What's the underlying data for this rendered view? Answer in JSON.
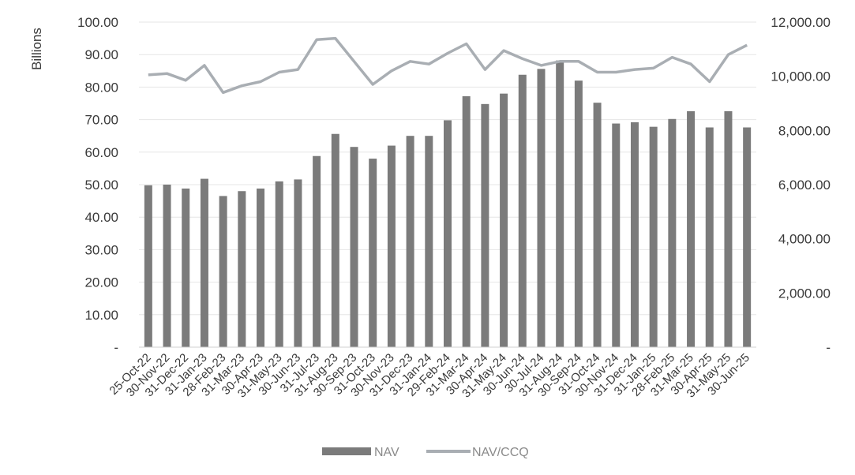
{
  "chart_data": {
    "type": "bar",
    "ylabel": "Billions",
    "y_left_ticks": [
      "-",
      "10.00",
      "20.00",
      "30.00",
      "40.00",
      "50.00",
      "60.00",
      "70.00",
      "80.00",
      "90.00",
      "100.00"
    ],
    "y_right_ticks": [
      "-",
      "2,000.00",
      "4,000.00",
      "6,000.00",
      "8,000.00",
      "10,000.00",
      "12,000.00"
    ],
    "ylim": [
      0,
      100
    ],
    "y2lim": [
      0,
      12000
    ],
    "categories": [
      "25-Oct-22",
      "30-Nov-22",
      "31-Dec-22",
      "31-Jan-23",
      "28-Feb-23",
      "31-Mar-23",
      "30-Apr-23",
      "31-May-23",
      "30-Jun-23",
      "31-Jul-23",
      "31-Aug-23",
      "30-Sep-23",
      "31-Oct-23",
      "30-Nov-23",
      "31-Dec-23",
      "31-Jan-24",
      "29-Feb-24",
      "31-Mar-24",
      "30-Apr-24",
      "31-May-24",
      "30-Jun-24",
      "30-Jul-24",
      "31-Aug-24",
      "30-Sep-24",
      "31-Oct-24",
      "30-Nov-24",
      "31-Dec-24",
      "31-Jan-25",
      "28-Feb-25",
      "31-Mar-25",
      "30-Apr-25",
      "31-May-25",
      "30-Jun-25"
    ],
    "series": [
      {
        "name": "NAV",
        "type": "bar",
        "axis": "left",
        "color": "#7b7b7b",
        "values": [
          49.8,
          50.0,
          48.8,
          51.8,
          46.5,
          48.0,
          48.8,
          51.0,
          51.6,
          58.8,
          65.6,
          61.6,
          58.0,
          62.0,
          65.0,
          65.0,
          69.8,
          77.2,
          74.8,
          78.0,
          83.8,
          85.6,
          88.2,
          82.0,
          75.2,
          68.8,
          69.2,
          67.8,
          70.2,
          72.6,
          67.6,
          72.6,
          67.6
        ]
      },
      {
        "name": "NAV/CCQ",
        "type": "line",
        "axis": "right",
        "color": "#a9aeb3",
        "values": [
          10050,
          10100,
          9850,
          10400,
          9400,
          9650,
          9800,
          10150,
          10250,
          11350,
          11400,
          10550,
          9700,
          10200,
          10550,
          10450,
          10850,
          11200,
          10250,
          10950,
          10650,
          10400,
          10550,
          10550,
          10150,
          10150,
          10250,
          10300,
          10700,
          10450,
          9800,
          10800,
          11150
        ]
      }
    ],
    "legend": {
      "position": "bottom",
      "items": [
        "NAV",
        "NAV/CCQ"
      ]
    },
    "grid": "horizontal"
  }
}
